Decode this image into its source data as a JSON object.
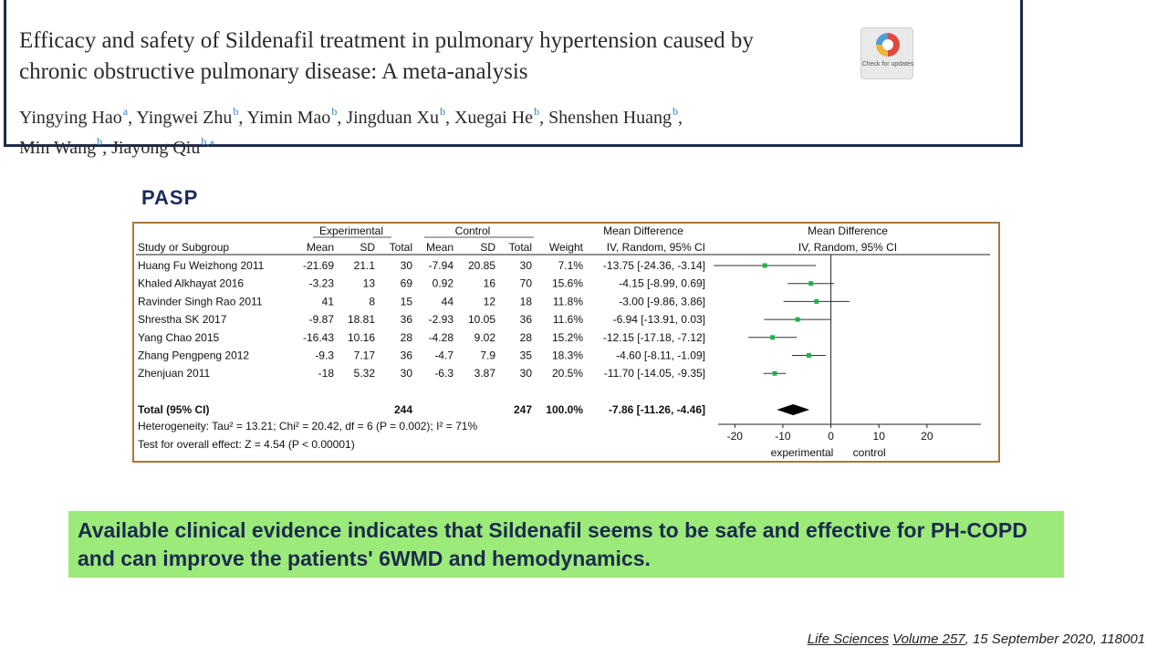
{
  "paper": {
    "title": "Efficacy and safety of Sildenafil treatment in pulmonary hypertension caused by chronic obstructive pulmonary disease: A meta-analysis",
    "authors": [
      {
        "name": "Yingying Hao",
        "aff": "a"
      },
      {
        "name": "Yingwei Zhu",
        "aff": "b"
      },
      {
        "name": "Yimin Mao",
        "aff": "b"
      },
      {
        "name": "Jingduan Xu",
        "aff": "b"
      },
      {
        "name": "Xuegai He",
        "aff": "b"
      },
      {
        "name": "Shenshen Huang",
        "aff": "b"
      },
      {
        "name": "Min Wang",
        "aff": "b"
      },
      {
        "name": "Jiayong Qiu",
        "aff": "b,⁎"
      }
    ],
    "badge_text": "Check for updates"
  },
  "section_label": "PASP",
  "forest": {
    "group_headers": {
      "experimental": "Experimental",
      "control": "Control",
      "md": "Mean Difference",
      "md_plot": "Mean Difference"
    },
    "columns": {
      "study": "Study or Subgroup",
      "mean": "Mean",
      "sd": "SD",
      "total": "Total",
      "weight": "Weight",
      "md": "IV, Random, 95% CI",
      "md_plot": "IV, Random, 95% CI"
    },
    "studies": [
      {
        "name": "Huang Fu Weizhong 2011",
        "e_mean": "-21.69",
        "e_sd": "21.1",
        "e_total": "30",
        "c_mean": "-7.94",
        "c_sd": "20.85",
        "c_total": "30",
        "weight": "7.1%",
        "ci": "-13.75 [-24.36, -3.14]",
        "md": -13.75,
        "lo": -24.36,
        "hi": -3.14
      },
      {
        "name": "Khaled Alkhayat 2016",
        "e_mean": "-3.23",
        "e_sd": "13",
        "e_total": "69",
        "c_mean": "0.92",
        "c_sd": "16",
        "c_total": "70",
        "weight": "15.6%",
        "ci": "-4.15 [-8.99, 0.69]",
        "md": -4.15,
        "lo": -8.99,
        "hi": 0.69
      },
      {
        "name": "Ravinder Singh Rao 2011",
        "e_mean": "41",
        "e_sd": "8",
        "e_total": "15",
        "c_mean": "44",
        "c_sd": "12",
        "c_total": "18",
        "weight": "11.8%",
        "ci": "-3.00 [-9.86, 3.86]",
        "md": -3.0,
        "lo": -9.86,
        "hi": 3.86
      },
      {
        "name": "Shrestha SK 2017",
        "e_mean": "-9.87",
        "e_sd": "18.81",
        "e_total": "36",
        "c_mean": "-2.93",
        "c_sd": "10.05",
        "c_total": "36",
        "weight": "11.6%",
        "ci": "-6.94 [-13.91, 0.03]",
        "md": -6.94,
        "lo": -13.91,
        "hi": 0.03
      },
      {
        "name": "Yang Chao 2015",
        "e_mean": "-16.43",
        "e_sd": "10.16",
        "e_total": "28",
        "c_mean": "-4.28",
        "c_sd": "9.02",
        "c_total": "28",
        "weight": "15.2%",
        "ci": "-12.15 [-17.18, -7.12]",
        "md": -12.15,
        "lo": -17.18,
        "hi": -7.12
      },
      {
        "name": "Zhang Pengpeng 2012",
        "e_mean": "-9.3",
        "e_sd": "7.17",
        "e_total": "36",
        "c_mean": "-4.7",
        "c_sd": "7.9",
        "c_total": "35",
        "weight": "18.3%",
        "ci": "-4.60 [-8.11, -1.09]",
        "md": -4.6,
        "lo": -8.11,
        "hi": -1.09
      },
      {
        "name": "Zhenjuan 2011",
        "e_mean": "-18",
        "e_sd": "5.32",
        "e_total": "30",
        "c_mean": "-6.3",
        "c_sd": "3.87",
        "c_total": "30",
        "weight": "20.5%",
        "ci": "-11.70 [-14.05, -9.35]",
        "md": -11.7,
        "lo": -14.05,
        "hi": -9.35
      }
    ],
    "total": {
      "label": "Total (95% CI)",
      "e_total": "244",
      "c_total": "247",
      "weight": "100.0%",
      "ci": "-7.86 [-11.26, -4.46]",
      "md": -7.86,
      "lo": -11.26,
      "hi": -4.46
    },
    "heterogeneity": "Heterogeneity: Tau² = 13.21; Chi² = 20.42, df = 6 (P = 0.002); I² = 71%",
    "overall_effect": "Test for overall effect: Z = 4.54 (P < 0.00001)",
    "axis": {
      "ticks": [
        "-20",
        "-10",
        "0",
        "10",
        "20"
      ],
      "tick_values": [
        -20,
        -10,
        0,
        10,
        20
      ],
      "range": [
        -25,
        32
      ]
    },
    "favours_left": "experimental",
    "favours_right": "control",
    "marker_color": "#22b14c"
  },
  "conclusion": "Available clinical evidence indicates that Sildenafil seems to be safe and effective for PH-COPD and can improve the patients' 6WMD and hemodynamics.",
  "citation": {
    "journal": "Life Sciences",
    "volume": "Volume 257",
    "rest": ", 15 September 2020, 118001"
  }
}
